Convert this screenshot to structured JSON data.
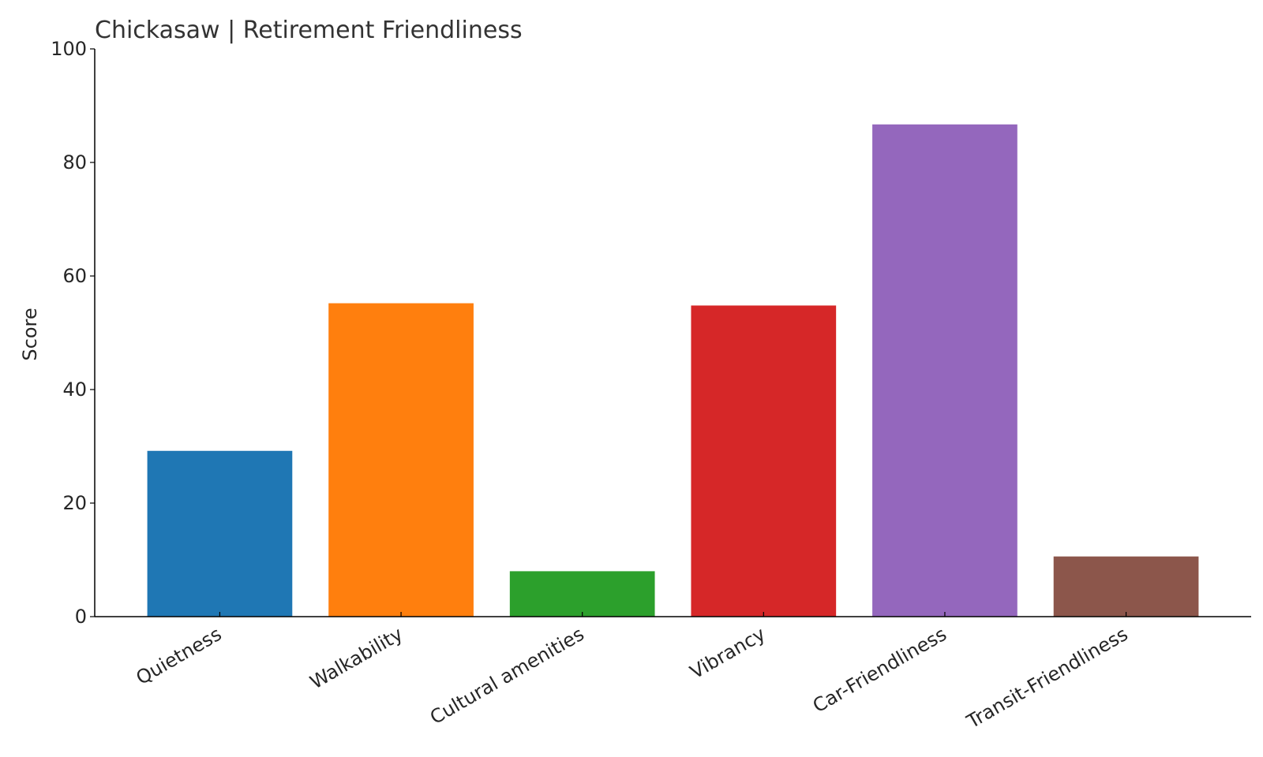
{
  "chart_data": {
    "type": "bar",
    "title": "Chickasaw | Retirement Friendliness",
    "y_label": "Score",
    "categories": [
      "Quietness",
      "Walkability",
      "Cultural amenities",
      "Vibrancy",
      "Car-Friendliness",
      "Transit-Friendliness"
    ],
    "values": [
      29.2,
      55.2,
      8.0,
      54.8,
      86.7,
      10.6
    ],
    "colors": [
      "#1f77b4",
      "#ff7f0e",
      "#2ca02c",
      "#d62728",
      "#9467bd",
      "#8c564b"
    ],
    "ylim": [
      0,
      100
    ],
    "yticks": [
      0,
      20,
      40,
      60,
      80,
      100
    ],
    "grid": false
  }
}
